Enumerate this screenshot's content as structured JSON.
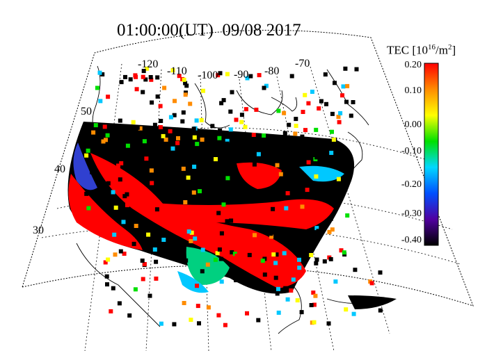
{
  "title": "01:00:00(UT)  09/08 2017",
  "colorbar": {
    "label": "TEC [10",
    "label_exp": "16",
    "label_unit": "/m",
    "label_unit_exp": "2",
    "label_end": "]",
    "ticks": [
      "0.20",
      "0.10",
      "0.00",
      "-0.10",
      "-0.20",
      "-0.30",
      "-0.40"
    ],
    "colors": [
      "#ff0000",
      "#ff8c00",
      "#ffff00",
      "#00e000",
      "#00d8ff",
      "#0050ff",
      "#5000a0",
      "#000000"
    ]
  },
  "map": {
    "longitude_labels": [
      "-120",
      "-110",
      "-100",
      "-90",
      "-80",
      "-70"
    ],
    "latitude_labels": [
      "50",
      "40",
      "30"
    ]
  }
}
